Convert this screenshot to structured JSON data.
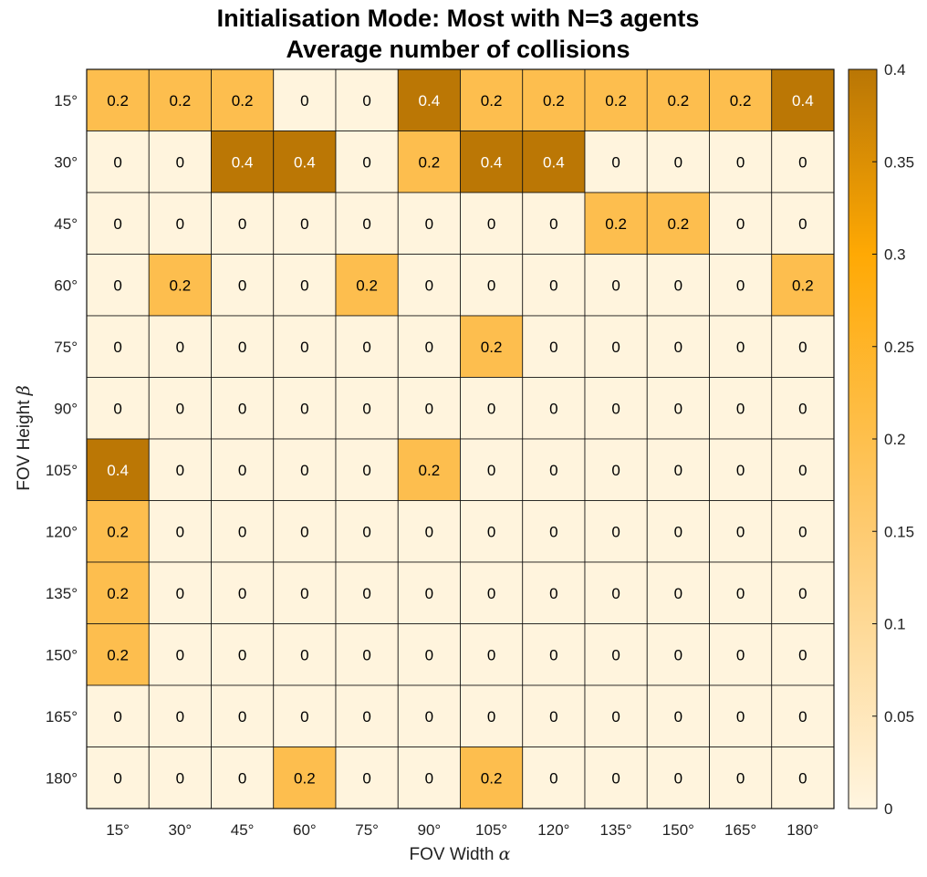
{
  "chart_data": {
    "type": "heatmap",
    "title": [
      "Initialisation Mode: Most with N=3 agents",
      "Average number of collisions"
    ],
    "xlabel": "FOV Width",
    "xlabel_symbol": "α",
    "ylabel": "FOV Height",
    "ylabel_symbol": "β",
    "x_categories": [
      "15°",
      "30°",
      "45°",
      "60°",
      "75°",
      "90°",
      "105°",
      "120°",
      "135°",
      "150°",
      "165°",
      "180°"
    ],
    "y_categories": [
      "15°",
      "30°",
      "45°",
      "60°",
      "75°",
      "90°",
      "105°",
      "120°",
      "135°",
      "150°",
      "165°",
      "180°"
    ],
    "values": [
      [
        0.2,
        0.2,
        0.2,
        0,
        0,
        0.4,
        0.2,
        0.2,
        0.2,
        0.2,
        0.2,
        0.4
      ],
      [
        0,
        0,
        0.4,
        0.4,
        0,
        0.2,
        0.4,
        0.4,
        0,
        0,
        0,
        0
      ],
      [
        0,
        0,
        0,
        0,
        0,
        0,
        0,
        0,
        0.2,
        0.2,
        0,
        0
      ],
      [
        0,
        0.2,
        0,
        0,
        0.2,
        0,
        0,
        0,
        0,
        0,
        0,
        0.2
      ],
      [
        0,
        0,
        0,
        0,
        0,
        0,
        0.2,
        0,
        0,
        0,
        0,
        0
      ],
      [
        0,
        0,
        0,
        0,
        0,
        0,
        0,
        0,
        0,
        0,
        0,
        0
      ],
      [
        0.4,
        0,
        0,
        0,
        0,
        0.2,
        0,
        0,
        0,
        0,
        0,
        0
      ],
      [
        0.2,
        0,
        0,
        0,
        0,
        0,
        0,
        0,
        0,
        0,
        0,
        0
      ],
      [
        0.2,
        0,
        0,
        0,
        0,
        0,
        0,
        0,
        0,
        0,
        0,
        0
      ],
      [
        0.2,
        0,
        0,
        0,
        0,
        0,
        0,
        0,
        0,
        0,
        0,
        0
      ],
      [
        0,
        0,
        0,
        0,
        0,
        0,
        0,
        0,
        0,
        0,
        0,
        0
      ],
      [
        0,
        0,
        0,
        0.2,
        0,
        0,
        0.2,
        0,
        0,
        0,
        0,
        0
      ]
    ],
    "color_levels": {
      "0": "#fff4dd",
      "0.2": "#fdbe4e",
      "0.4": "#bb7705"
    },
    "colorbar": {
      "range": [
        0,
        0.4
      ],
      "ticks": [
        "0",
        "0.05",
        "0.1",
        "0.15",
        "0.2",
        "0.25",
        "0.3",
        "0.35",
        "0.4"
      ],
      "gradient_stops": [
        {
          "value": 0,
          "color": "#fff5e0"
        },
        {
          "value": 0.15,
          "color": "#fecb71"
        },
        {
          "value": 0.3,
          "color": "#ffa904"
        },
        {
          "value": 0.4,
          "color": "#b97605"
        }
      ]
    },
    "grid": true,
    "text_colors": {
      "dark": "#000000",
      "light": "#ffffff"
    }
  }
}
